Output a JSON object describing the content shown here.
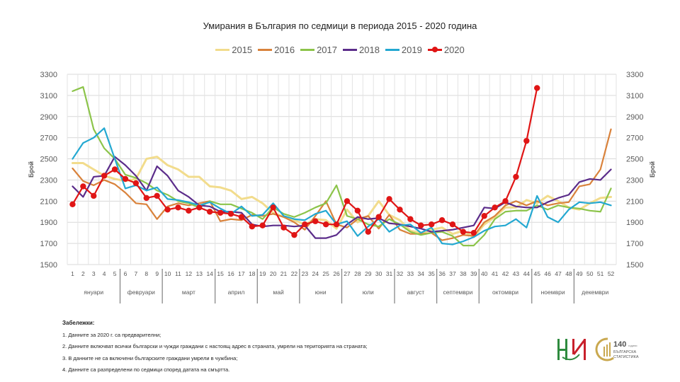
{
  "chart_data": {
    "type": "line",
    "title": "Умирания в България по седмици в периода 2015 - 2020 година",
    "xlabel": "",
    "ylabel": "Брой",
    "y2label": "Брой",
    "ylim": [
      1500,
      3300
    ],
    "yticks": [
      1500,
      1700,
      1900,
      2100,
      2300,
      2500,
      2700,
      2900,
      3100,
      3300
    ],
    "grid": true,
    "legend_position": "top",
    "x": [
      1,
      2,
      3,
      4,
      5,
      6,
      7,
      8,
      9,
      10,
      11,
      12,
      13,
      14,
      15,
      16,
      17,
      18,
      19,
      20,
      21,
      22,
      23,
      24,
      25,
      26,
      27,
      28,
      29,
      30,
      31,
      32,
      33,
      34,
      35,
      36,
      37,
      38,
      39,
      40,
      41,
      42,
      43,
      44,
      45,
      46,
      47,
      48,
      49,
      50,
      51,
      52
    ],
    "months": [
      {
        "label": "януари",
        "from": 1,
        "to": 5
      },
      {
        "label": "февруари",
        "from": 6,
        "to": 9
      },
      {
        "label": "март",
        "from": 10,
        "to": 14
      },
      {
        "label": "април",
        "from": 15,
        "to": 18
      },
      {
        "label": "май",
        "from": 19,
        "to": 22
      },
      {
        "label": "юни",
        "from": 23,
        "to": 26
      },
      {
        "label": "юли",
        "from": 27,
        "to": 31
      },
      {
        "label": "август",
        "from": 32,
        "to": 35
      },
      {
        "label": "септември",
        "from": 36,
        "to": 39
      },
      {
        "label": "октомври",
        "from": 40,
        "to": 44
      },
      {
        "label": "ноември",
        "from": 45,
        "to": 48
      },
      {
        "label": "декември",
        "from": 49,
        "to": 52
      }
    ],
    "series": [
      {
        "name": "2015",
        "color": "#f2dc8c",
        "markers": false,
        "values": [
          2460,
          2460,
          2400,
          2340,
          2310,
          2290,
          2310,
          2500,
          2520,
          2440,
          2400,
          2330,
          2330,
          2240,
          2230,
          2200,
          2120,
          2140,
          2080,
          1990,
          1950,
          1920,
          1880,
          1930,
          1920,
          1840,
          2020,
          1900,
          1960,
          2100,
          1970,
          1920,
          1820,
          1800,
          1830,
          1850,
          1790,
          1820,
          1760,
          1880,
          1950,
          2040,
          2040,
          2110,
          2080,
          2150,
          2100,
          2040,
          2020,
          2080,
          2130,
          2140
        ]
      },
      {
        "name": "2016",
        "color": "#d9823b",
        "markers": false,
        "values": [
          2410,
          2290,
          2250,
          2300,
          2260,
          2180,
          2080,
          2070,
          1930,
          2050,
          2080,
          2060,
          2080,
          2100,
          1910,
          1930,
          1920,
          1970,
          1960,
          1980,
          1950,
          1900,
          1830,
          1960,
          2100,
          1880,
          1850,
          1930,
          1960,
          1840,
          1970,
          1830,
          1790,
          1790,
          1800,
          1730,
          1750,
          1780,
          1770,
          1900,
          1960,
          2060,
          2100,
          2060,
          2100,
          2060,
          2080,
          2090,
          2240,
          2260,
          2400,
          2780
        ]
      },
      {
        "name": "2017",
        "color": "#8cc44a",
        "markers": false,
        "values": [
          3140,
          3180,
          2780,
          2600,
          2500,
          2350,
          2320,
          2270,
          2200,
          2160,
          2100,
          2080,
          2040,
          2100,
          2070,
          2070,
          2030,
          1990,
          1930,
          2040,
          1980,
          1950,
          1990,
          2040,
          2080,
          2250,
          1960,
          1930,
          1880,
          1860,
          1930,
          1880,
          1810,
          1780,
          1800,
          1810,
          1770,
          1680,
          1680,
          1780,
          1930,
          2000,
          2010,
          2010,
          2060,
          2020,
          2060,
          2040,
          2030,
          2010,
          2000,
          2220
        ]
      },
      {
        "name": "2018",
        "color": "#5b2c8a",
        "markers": false,
        "values": [
          2240,
          2140,
          2330,
          2340,
          2520,
          2440,
          2340,
          2200,
          2430,
          2340,
          2200,
          2140,
          2060,
          2050,
          2000,
          2000,
          1990,
          1880,
          1860,
          1870,
          1870,
          1860,
          1870,
          1750,
          1750,
          1780,
          1880,
          1950,
          1930,
          1940,
          1890,
          1880,
          1860,
          1840,
          1810,
          1820,
          1830,
          1850,
          1870,
          2040,
          2030,
          2090,
          2050,
          2040,
          2040,
          2090,
          2130,
          2160,
          2280,
          2310,
          2300,
          2400
        ]
      },
      {
        "name": "2019",
        "color": "#23a8d1",
        "markers": false,
        "values": [
          2500,
          2650,
          2700,
          2790,
          2500,
          2220,
          2250,
          2200,
          2230,
          2120,
          2110,
          2090,
          2060,
          2090,
          2030,
          1980,
          2050,
          1960,
          1970,
          2080,
          1960,
          1930,
          1920,
          1980,
          2010,
          1880,
          1910,
          1770,
          1860,
          1930,
          1810,
          1870,
          1880,
          1800,
          1850,
          1700,
          1690,
          1720,
          1760,
          1820,
          1860,
          1870,
          1930,
          1850,
          2150,
          1950,
          1900,
          2020,
          2090,
          2080,
          2090,
          2060
        ]
      },
      {
        "name": "2020",
        "color": "#e01515",
        "markers": true,
        "values": [
          2070,
          2240,
          2150,
          2340,
          2400,
          2310,
          2270,
          2130,
          2150,
          2020,
          2040,
          2010,
          2040,
          2000,
          1990,
          1980,
          1950,
          1860,
          1870,
          2040,
          1850,
          1780,
          1880,
          1910,
          1880,
          1880,
          2100,
          2010,
          1810,
          1950,
          2120,
          2020,
          1930,
          1870,
          1880,
          1920,
          1880,
          1810,
          1800,
          1960,
          2040,
          2100,
          2330,
          2670,
          3170
        ]
      }
    ]
  },
  "notes": {
    "header": "Забележки:",
    "items": [
      "1. Данните за 2020 г. са предварителни;",
      "2. Данните включват всички български и чужди граждани с настоящ адрес в страната, умрели на територията на страната;",
      "3. В данните не са включени българските граждани умрели в чужбина;",
      "4. Данните са разпределени по седмици според датата на смъртта."
    ]
  },
  "logos": {
    "nsi": "НСИ",
    "anniversary_number": "140",
    "anniversary_unit": "години",
    "anniversary_line1": "БЪЛГАРСКА",
    "anniversary_line2": "СТАТИСТИКА"
  }
}
